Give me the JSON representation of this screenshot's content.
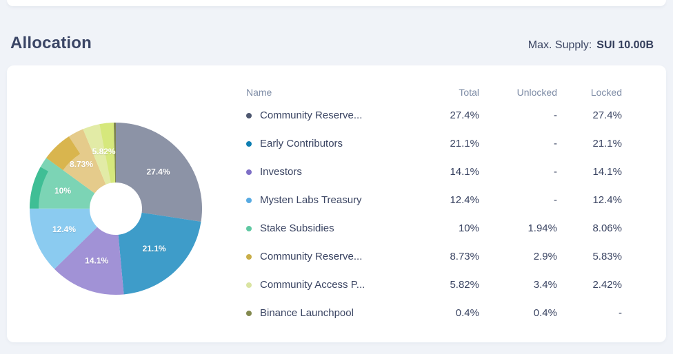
{
  "page": {
    "title": "Allocation",
    "max_supply_label": "Max. Supply:",
    "max_supply_value": "SUI 10.00B"
  },
  "colors": {
    "background": "#f0f3f8",
    "card": "#ffffff",
    "title_text": "#3a4565",
    "header_text": "#7e8ca6",
    "cell_text": "#3a4462"
  },
  "table": {
    "columns": [
      "Name",
      "Total",
      "Unlocked",
      "Locked"
    ],
    "rows": [
      {
        "dot": "#4e5870",
        "name": "Community Reserve...",
        "total": "27.4%",
        "unlocked": "-",
        "locked": "27.4%"
      },
      {
        "dot": "#0e7fb2",
        "name": "Early Contributors",
        "total": "21.1%",
        "unlocked": "-",
        "locked": "21.1%"
      },
      {
        "dot": "#7e6fc6",
        "name": "Investors",
        "total": "14.1%",
        "unlocked": "-",
        "locked": "14.1%"
      },
      {
        "dot": "#57aae2",
        "name": "Mysten Labs Treasury",
        "total": "12.4%",
        "unlocked": "-",
        "locked": "12.4%"
      },
      {
        "dot": "#5fc8a2",
        "name": "Stake Subsidies",
        "total": "10%",
        "unlocked": "1.94%",
        "locked": "8.06%"
      },
      {
        "dot": "#c9ae49",
        "name": "Community Reserve...",
        "total": "8.73%",
        "unlocked": "2.9%",
        "locked": "5.83%"
      },
      {
        "dot": "#dae4a2",
        "name": "Community Access P...",
        "total": "5.82%",
        "unlocked": "3.4%",
        "locked": "2.42%"
      },
      {
        "dot": "#83894f",
        "name": "Binance Launchpool",
        "total": "0.4%",
        "unlocked": "0.4%",
        "locked": "-"
      }
    ]
  },
  "chart_data": {
    "type": "pie",
    "donut": true,
    "direction": "clockwise",
    "start_angle": "12 o'clock",
    "categories": [
      "Community Reserve...",
      "Early Contributors",
      "Investors",
      "Mysten Labs Treasury",
      "Stake Subsidies",
      "Community Reserve...",
      "Community Access P...",
      "Binance Launchpool"
    ],
    "values": [
      27.4,
      21.1,
      14.1,
      12.4,
      10,
      8.73,
      5.82,
      0.4
    ],
    "slice_labels": [
      "27.4%",
      "21.1%",
      "14.1%",
      "12.4%",
      "10%",
      "8.73%",
      "5.82%",
      ""
    ],
    "colors": [
      "#8c93a6",
      "#3e9cc9",
      "#a192d6",
      "#8bcbf0",
      "#7cd4b5",
      "#e5cb8b",
      "#e2eba6",
      "#7e8550"
    ],
    "overlays": [
      {
        "slice": 4,
        "note": "locked portion band",
        "fraction": 0.8,
        "align": "start",
        "inner_radius": 112,
        "color": "#3fbe95"
      },
      {
        "slice": 5,
        "note": "locked portion band",
        "fraction": 0.66,
        "align": "start",
        "inner_radius": 95,
        "color": "#d9b54e"
      },
      {
        "slice": 6,
        "note": "locked portion wedge",
        "fraction": 0.45,
        "align": "end",
        "inner_radius": 38,
        "color": "#d6e87c"
      }
    ],
    "geometry": {
      "outer_radius": 125,
      "inner_radius": 38,
      "label_radius": 81
    },
    "legend_position": "table-right",
    "grid": false
  }
}
